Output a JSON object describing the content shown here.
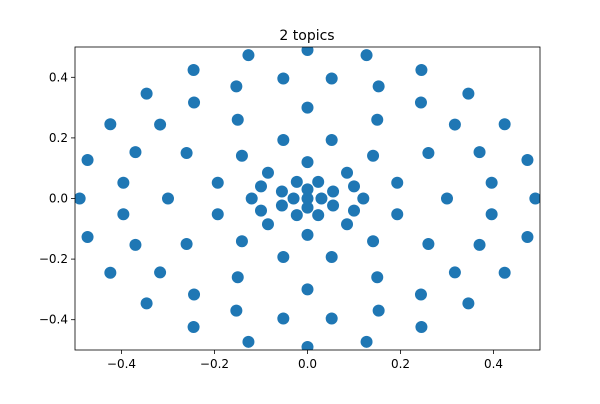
{
  "chart_data": {
    "type": "scatter",
    "title": "2 topics",
    "color": "#1f77b4",
    "x": [
      0.49,
      0.473,
      0.424,
      0.346,
      0.245,
      0.127,
      0,
      -0.127,
      -0.245,
      -0.346,
      -0.424,
      -0.473,
      -0.49,
      -0.473,
      -0.424,
      -0.346,
      -0.245,
      -0.127,
      0,
      0.127,
      0.245,
      0.346,
      0.424,
      0.473,
      0.396,
      0.37,
      0.317,
      0.244,
      0.153,
      0.052,
      -0.052,
      -0.153,
      -0.244,
      -0.317,
      -0.37,
      -0.396,
      -0.396,
      -0.37,
      -0.317,
      -0.244,
      -0.153,
      -0.052,
      0.052,
      0.153,
      0.244,
      0.317,
      0.37,
      0.396,
      0.3,
      0.26,
      0.15,
      0,
      -0.15,
      -0.26,
      -0.3,
      -0.26,
      -0.15,
      0,
      0.15,
      0.26,
      0.193,
      0.141,
      0.052,
      -0.052,
      -0.141,
      -0.193,
      -0.193,
      -0.141,
      -0.052,
      0.052,
      0.141,
      0.193,
      0.12,
      0.085,
      0,
      -0.085,
      -0.12,
      -0.085,
      0,
      0.085,
      0.055,
      0.023,
      -0.023,
      -0.055,
      -0.055,
      -0.023,
      0.023,
      0.055,
      0,
      0.03,
      -0.03,
      0,
      0,
      0.1,
      -0.1,
      0.1,
      -0.1
    ],
    "values": [
      0,
      0.127,
      0.245,
      0.346,
      0.424,
      0.473,
      0.49,
      0.473,
      0.424,
      0.346,
      0.245,
      0.127,
      0,
      -0.127,
      -0.245,
      -0.346,
      -0.424,
      -0.473,
      -0.49,
      -0.473,
      -0.424,
      -0.346,
      -0.245,
      -0.127,
      0.052,
      0.153,
      0.244,
      0.317,
      0.37,
      0.396,
      0.396,
      0.37,
      0.317,
      0.244,
      0.153,
      0.052,
      -0.052,
      -0.153,
      -0.244,
      -0.317,
      -0.37,
      -0.396,
      -0.396,
      -0.37,
      -0.317,
      -0.244,
      -0.153,
      -0.052,
      0,
      0.15,
      0.26,
      0.3,
      0.26,
      0.15,
      0,
      -0.15,
      -0.26,
      -0.3,
      -0.26,
      -0.15,
      0.052,
      0.141,
      0.193,
      0.193,
      0.141,
      0.052,
      -0.052,
      -0.141,
      -0.193,
      -0.193,
      -0.141,
      -0.052,
      0,
      0.085,
      0.12,
      0.085,
      0,
      -0.085,
      -0.12,
      -0.085,
      0.023,
      0.055,
      0.055,
      0.023,
      -0.023,
      -0.055,
      -0.055,
      -0.023,
      0,
      0,
      0,
      0.03,
      -0.03,
      0.04,
      0.04,
      -0.04,
      -0.04
    ],
    "xlim": [
      -0.5,
      0.5
    ],
    "ylim": [
      -0.5,
      0.5
    ],
    "xticks": [
      {
        "value": -0.4,
        "label": "−0.4"
      },
      {
        "value": -0.2,
        "label": "−0.2"
      },
      {
        "value": 0,
        "label": "0.0"
      },
      0.2,
      0.4
    ],
    "yticks": [
      {
        "value": -0.4,
        "label": "−0.4"
      },
      {
        "value": -0.2,
        "label": "−0.2"
      },
      {
        "value": 0,
        "label": "0.0"
      },
      0.2,
      0.4
    ]
  }
}
